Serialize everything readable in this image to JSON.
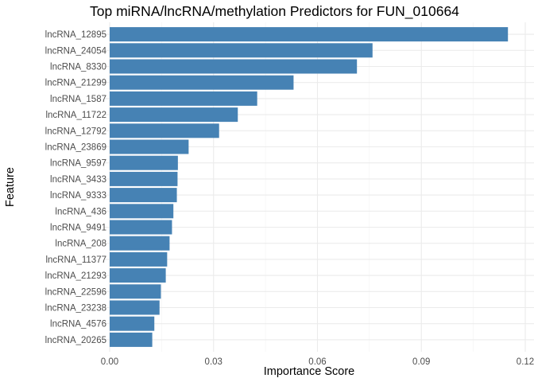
{
  "chart_data": {
    "type": "bar",
    "orientation": "horizontal",
    "title": "Top miRNA/lncRNA/methylation Predictors for FUN_010664",
    "xlabel": "Importance Score",
    "ylabel": "Feature",
    "xlim": [
      0,
      0.12
    ],
    "xticks": [
      "0.00",
      "0.03",
      "0.06",
      "0.09",
      "0.12"
    ],
    "grid": true,
    "bar_color": "#4682b4",
    "categories": [
      "lncRNA_12895",
      "lncRNA_24054",
      "lncRNA_8330",
      "lncRNA_21299",
      "lncRNA_1587",
      "lncRNA_11722",
      "lncRNA_12792",
      "lncRNA_23869",
      "lncRNA_9597",
      "lncRNA_3433",
      "lncRNA_9333",
      "lncRNA_436",
      "lncRNA_9491",
      "lncRNA_208",
      "lncRNA_11377",
      "lncRNA_21293",
      "lncRNA_22596",
      "lncRNA_23238",
      "lncRNA_4576",
      "lncRNA_20265"
    ],
    "values": [
      0.115,
      0.0759,
      0.0714,
      0.0531,
      0.0426,
      0.037,
      0.0316,
      0.0228,
      0.0197,
      0.0196,
      0.0194,
      0.0184,
      0.018,
      0.0173,
      0.0166,
      0.0162,
      0.0148,
      0.0144,
      0.0129,
      0.0123
    ]
  }
}
